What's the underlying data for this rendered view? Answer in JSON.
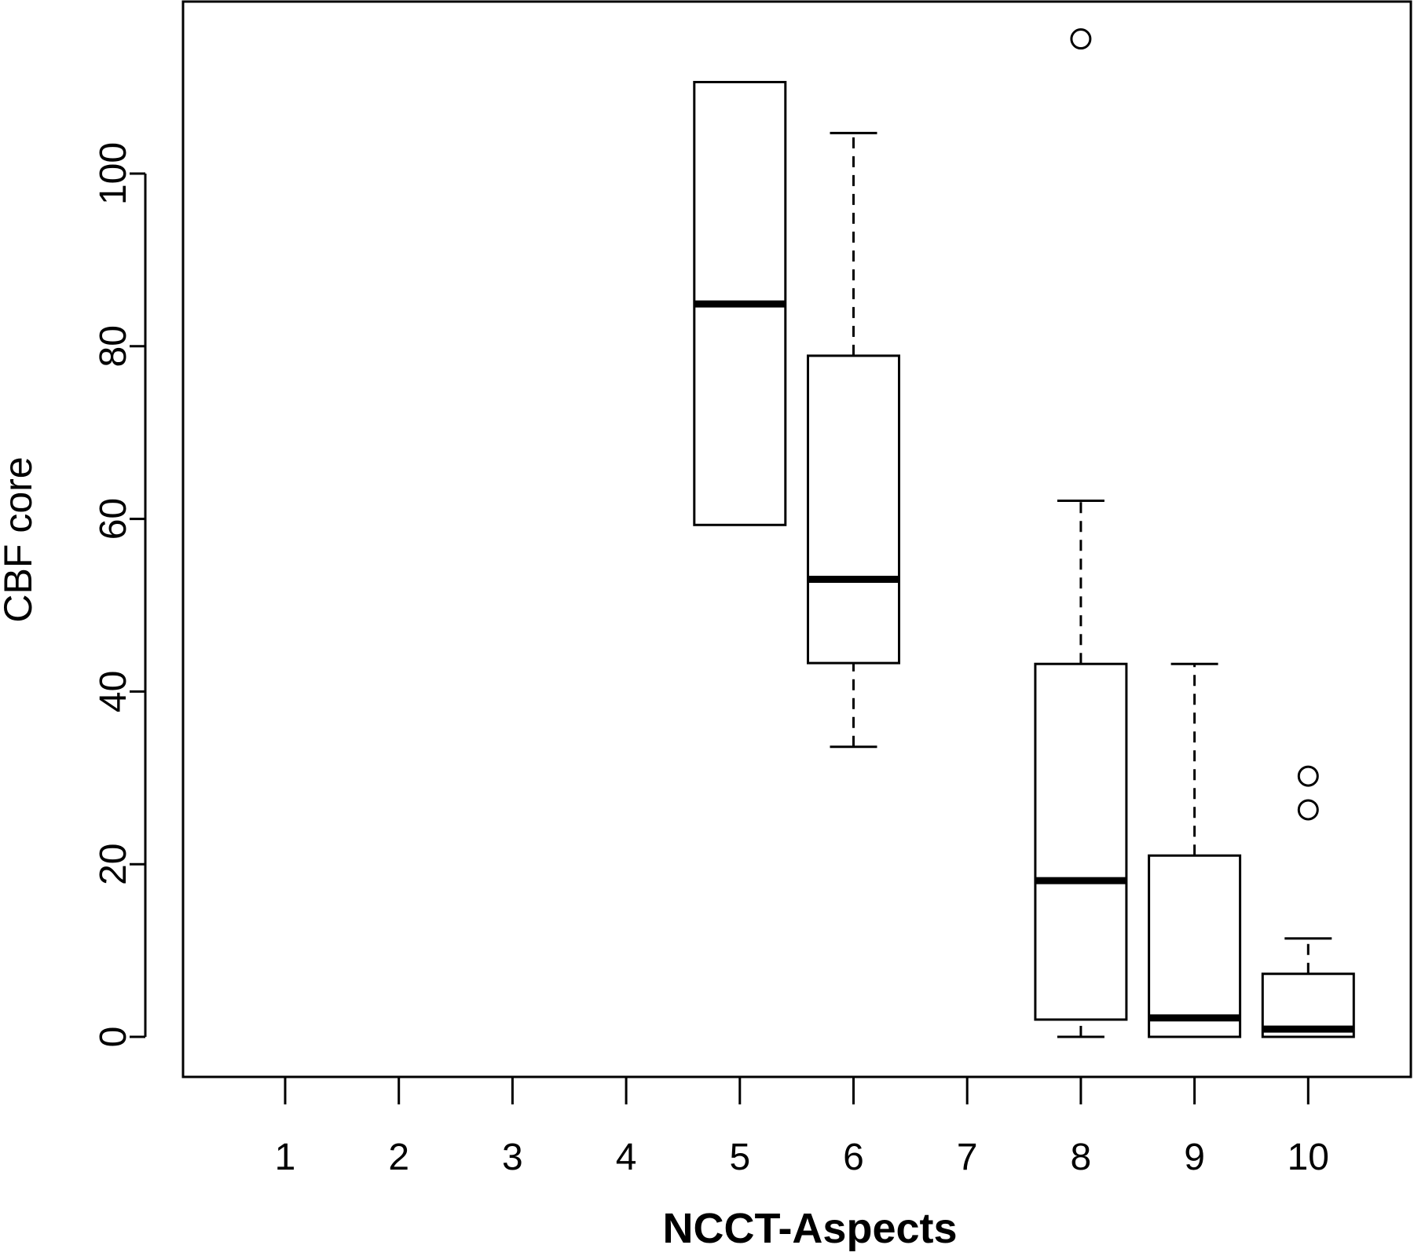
{
  "chart_data": {
    "type": "boxplot",
    "xlabel": "NCCT-Aspects",
    "ylabel": "CBF core",
    "categories": [
      "1",
      "2",
      "3",
      "4",
      "5",
      "6",
      "7",
      "8",
      "9",
      "10"
    ],
    "ylim": [
      -4.6,
      120
    ],
    "yticks": [
      0,
      20,
      40,
      60,
      80,
      100
    ],
    "grid": false,
    "boxes": [
      {
        "category": "5",
        "min": 59.3,
        "q1": 59.3,
        "median": 84.9,
        "q3": 110.6,
        "max": 110.6,
        "outliers": []
      },
      {
        "category": "6",
        "min": 33.6,
        "q1": 43.3,
        "median": 53.0,
        "q3": 78.9,
        "max": 104.7,
        "outliers": []
      },
      {
        "category": "8",
        "min": 0.0,
        "q1": 2.0,
        "median": 18.1,
        "q3": 43.2,
        "max": 62.1,
        "outliers": [
          115.6
        ]
      },
      {
        "category": "9",
        "min": 0.0,
        "q1": 0.0,
        "median": 2.2,
        "q3": 21.0,
        "max": 43.2,
        "outliers": []
      },
      {
        "category": "10",
        "min": 0.0,
        "q1": 0.0,
        "median": 0.9,
        "q3": 7.3,
        "max": 11.4,
        "outliers": [
          26.3,
          30.2
        ]
      }
    ]
  }
}
